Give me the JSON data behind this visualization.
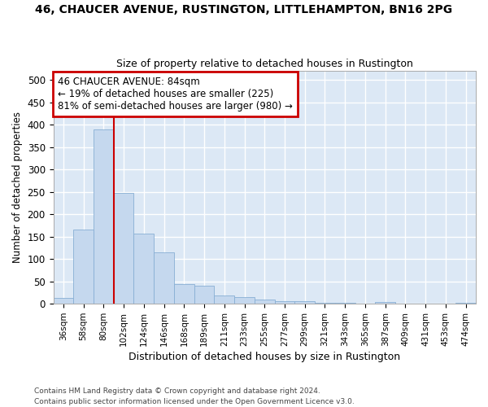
{
  "title": "46, CHAUCER AVENUE, RUSTINGTON, LITTLEHAMPTON, BN16 2PG",
  "subtitle": "Size of property relative to detached houses in Rustington",
  "xlabel": "Distribution of detached houses by size in Rustington",
  "ylabel": "Number of detached properties",
  "categories": [
    "36sqm",
    "58sqm",
    "80sqm",
    "102sqm",
    "124sqm",
    "146sqm",
    "168sqm",
    "189sqm",
    "211sqm",
    "233sqm",
    "255sqm",
    "277sqm",
    "299sqm",
    "321sqm",
    "343sqm",
    "365sqm",
    "387sqm",
    "409sqm",
    "431sqm",
    "453sqm",
    "474sqm"
  ],
  "values": [
    13,
    165,
    390,
    248,
    157,
    115,
    44,
    40,
    19,
    15,
    9,
    6,
    5,
    3,
    2,
    1,
    4,
    1,
    0,
    0,
    2
  ],
  "bar_color": "#c5d8ee",
  "bar_edge_color": "#88afd4",
  "bg_color": "#dce8f5",
  "grid_color": "#ffffff",
  "vline_x": 2.5,
  "vline_color": "#cc0000",
  "annotation_text": "46 CHAUCER AVENUE: 84sqm\n← 19% of detached houses are smaller (225)\n81% of semi-detached houses are larger (980) →",
  "annotation_box_edgecolor": "#cc0000",
  "footer_text": "Contains HM Land Registry data © Crown copyright and database right 2024.\nContains public sector information licensed under the Open Government Licence v3.0.",
  "ylim": [
    0,
    520
  ],
  "yticks": [
    0,
    50,
    100,
    150,
    200,
    250,
    300,
    350,
    400,
    450,
    500
  ]
}
